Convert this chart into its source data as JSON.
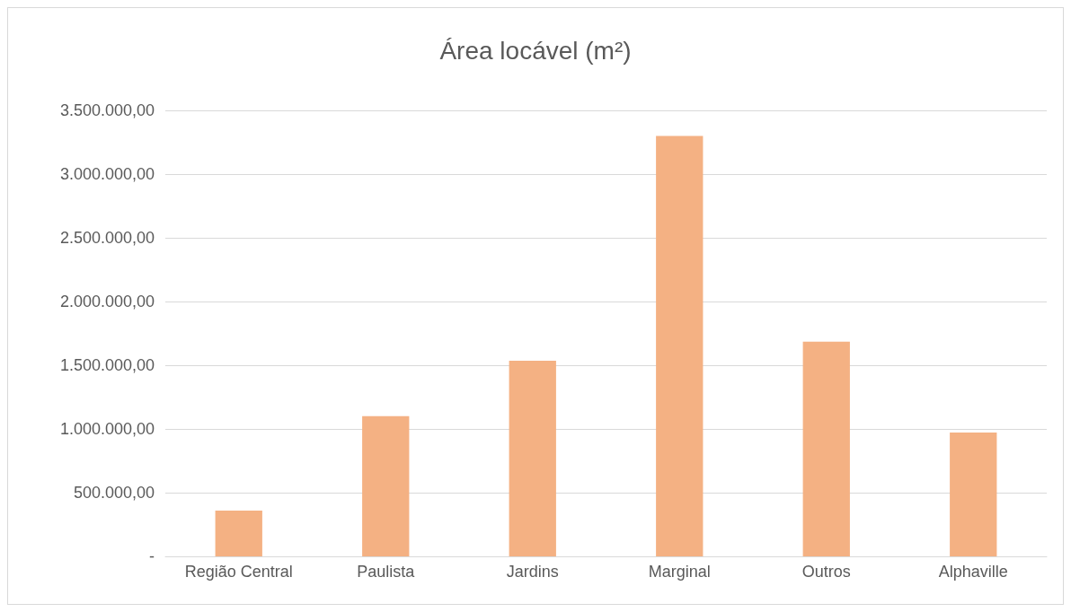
{
  "chart_data": {
    "type": "bar",
    "title": "Área locável (m²)",
    "categories": [
      "Região Central",
      "Paulista",
      "Jardins",
      "Marginal",
      "Outros",
      "Alphaville"
    ],
    "values": [
      360000,
      1100000,
      1535000,
      3300000,
      1685000,
      971000
    ],
    "color": "#f4b183",
    "ylim": [
      0,
      3500000
    ],
    "yticks": [
      {
        "value": 0,
        "label": "-"
      },
      {
        "value": 500000,
        "label": "500.000,00"
      },
      {
        "value": 1000000,
        "label": "1.000.000,00"
      },
      {
        "value": 1500000,
        "label": "1.500.000,00"
      },
      {
        "value": 2000000,
        "label": "2.000.000,00"
      },
      {
        "value": 2500000,
        "label": "2.500.000,00"
      },
      {
        "value": 3000000,
        "label": "3.000.000,00"
      },
      {
        "value": 3500000,
        "label": "3.500.000,00"
      }
    ],
    "grid": "y"
  }
}
